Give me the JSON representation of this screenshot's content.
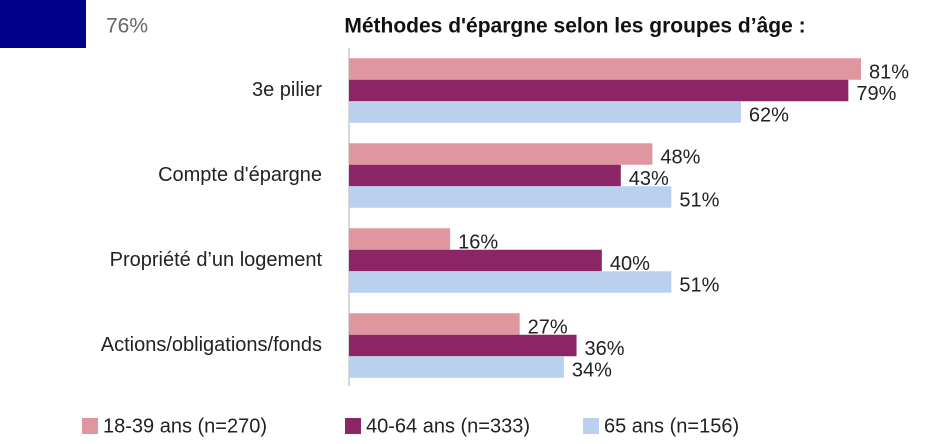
{
  "annotation": "76%",
  "chart_data": {
    "type": "hbar",
    "title": "Méthodes d'épargne selon les groupes d’âge :",
    "categories": [
      "3e pilier",
      "Compte d'épargne",
      "Propriété d’un logement",
      "Actions/obligations/fonds"
    ],
    "xlim": [
      0,
      100
    ],
    "series": [
      {
        "name": "18-39 ans (n=270)",
        "color": "#e0969f",
        "values": [
          81,
          48,
          16,
          27
        ],
        "value_labels": [
          "81%",
          "48%",
          "16%",
          "27%"
        ]
      },
      {
        "name": "40-64 ans (n=333)",
        "color": "#8b2566",
        "values": [
          79,
          43,
          40,
          36
        ],
        "value_labels": [
          "79%",
          "43%",
          "40%",
          "36%"
        ]
      },
      {
        "name": "65 ans (n=156)",
        "color": "#b9d0ef",
        "values": [
          62,
          51,
          51,
          34
        ],
        "value_labels": [
          "62%",
          "51%",
          "51%",
          "34%"
        ]
      }
    ],
    "legend": "bottom"
  }
}
